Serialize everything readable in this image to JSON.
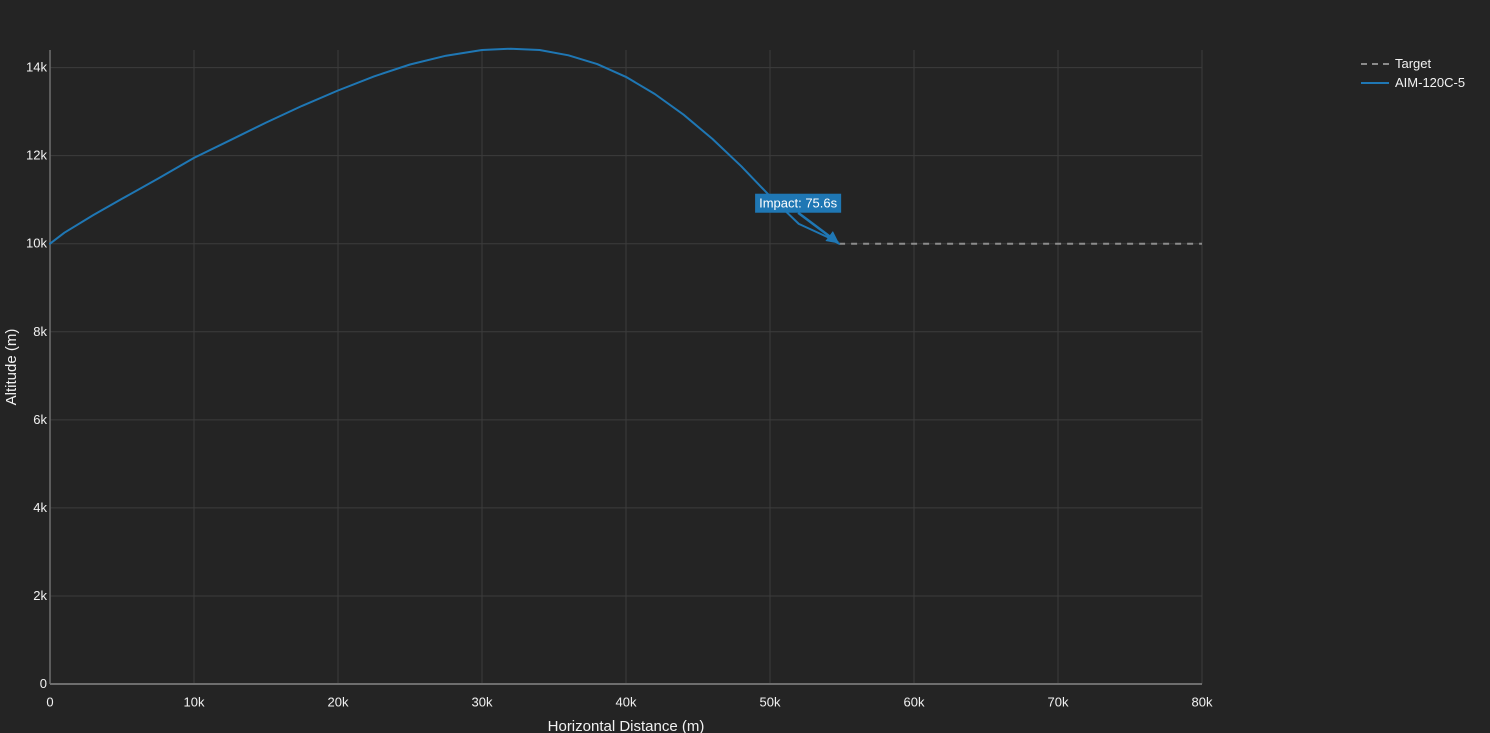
{
  "chart_data": {
    "type": "line",
    "xlabel": "Horizontal Distance (m)",
    "ylabel": "Altitude (m)",
    "xlim": [
      0,
      80000
    ],
    "ylim": [
      0,
      14400
    ],
    "xticks": [
      0,
      10000,
      20000,
      30000,
      40000,
      50000,
      60000,
      70000,
      80000
    ],
    "xtick_labels": [
      "0",
      "10k",
      "20k",
      "30k",
      "40k",
      "50k",
      "60k",
      "70k",
      "80k"
    ],
    "yticks": [
      0,
      2000,
      4000,
      6000,
      8000,
      10000,
      12000,
      14000
    ],
    "ytick_labels": [
      "0",
      "2k",
      "4k",
      "6k",
      "8k",
      "10k",
      "12k",
      "14k"
    ],
    "grid": true,
    "legend_placement": "top-right",
    "series": [
      {
        "name": "Target",
        "style": "dashed",
        "color": "#8c8c8c",
        "x": [
          54800,
          80000
        ],
        "y": [
          10000,
          10000
        ]
      },
      {
        "name": "AIM-120C-5",
        "style": "solid",
        "color": "#1f77b4",
        "x": [
          0,
          1000,
          3000,
          5000,
          7500,
          10000,
          12500,
          15000,
          17500,
          20000,
          22500,
          25000,
          27500,
          30000,
          32000,
          34000,
          36000,
          38000,
          40000,
          42000,
          44000,
          46000,
          48000,
          50000,
          52000,
          54000,
          54800
        ],
        "y": [
          10000,
          10250,
          10650,
          11020,
          11480,
          11950,
          12350,
          12750,
          13130,
          13480,
          13800,
          14070,
          14270,
          14400,
          14430,
          14400,
          14280,
          14080,
          13790,
          13400,
          12930,
          12380,
          11760,
          11080,
          10450,
          10150,
          10000
        ]
      }
    ],
    "annotations": [
      {
        "text": "Impact: 75.6s",
        "x": 54800,
        "y": 10000,
        "bgcolor": "#1f77b4"
      }
    ]
  }
}
